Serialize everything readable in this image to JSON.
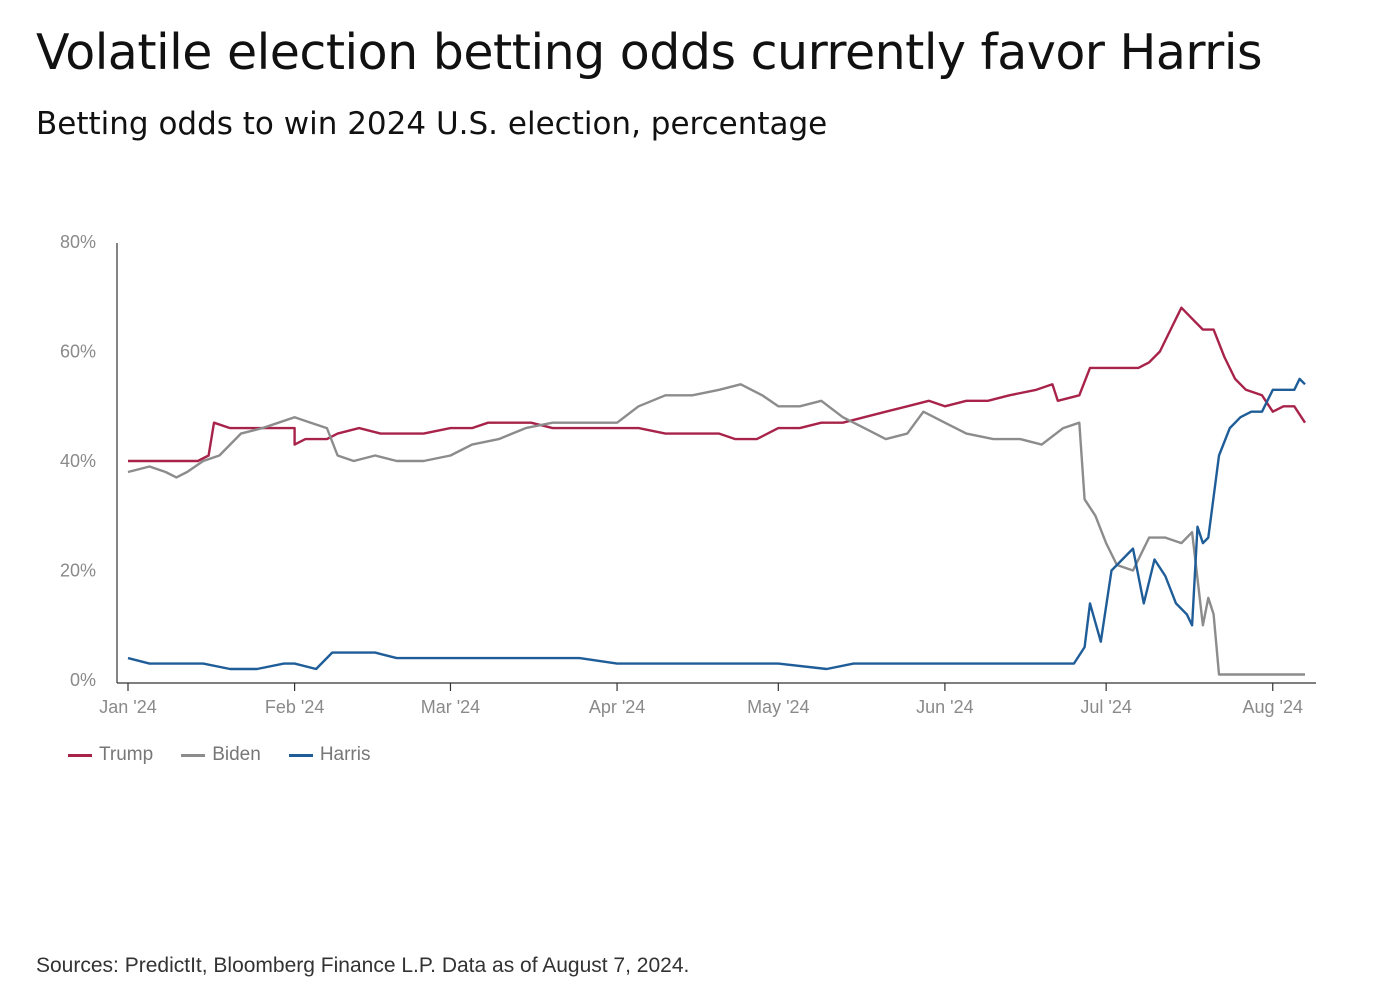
{
  "header": {
    "title": "Volatile election betting odds currently favor Harris",
    "subtitle": "Betting odds to win 2024 U.S. election, percentage"
  },
  "footer": {
    "source": "Sources: PredictIt, Bloomberg Finance L.P. Data as of August 7, 2024."
  },
  "chart_data": {
    "type": "line",
    "title": "Volatile election betting odds currently favor Harris",
    "subtitle": "Betting odds to win 2024 U.S. election, percentage",
    "xlabel": "",
    "ylabel": "",
    "x_axis": {
      "range": [
        "2024-01-01",
        "2024-08-07"
      ],
      "ticks": [
        {
          "date": "2024-01-01",
          "label": "Jan '24"
        },
        {
          "date": "2024-02-01",
          "label": "Feb '24"
        },
        {
          "date": "2024-03-01",
          "label": "Mar '24"
        },
        {
          "date": "2024-04-01",
          "label": "Apr '24"
        },
        {
          "date": "2024-05-01",
          "label": "May '24"
        },
        {
          "date": "2024-06-01",
          "label": "Jun '24"
        },
        {
          "date": "2024-07-01",
          "label": "Jul '24"
        },
        {
          "date": "2024-08-01",
          "label": "Aug '24"
        }
      ]
    },
    "y_axis": {
      "ylim": [
        0,
        80
      ],
      "ticks": [
        {
          "value": 0,
          "label": "0%"
        },
        {
          "value": 20,
          "label": "20%"
        },
        {
          "value": 40,
          "label": "40%"
        },
        {
          "value": 60,
          "label": "60%"
        },
        {
          "value": 80,
          "label": "80%"
        }
      ]
    },
    "grid": false,
    "legend_position": "bottom-left",
    "series": [
      {
        "name": "Trump",
        "color": "#a8234a",
        "points": [
          [
            "2024-01-01",
            40
          ],
          [
            "2024-01-05",
            40
          ],
          [
            "2024-01-10",
            40
          ],
          [
            "2024-01-14",
            40
          ],
          [
            "2024-01-16",
            41
          ],
          [
            "2024-01-17",
            47
          ],
          [
            "2024-01-20",
            46
          ],
          [
            "2024-01-25",
            46
          ],
          [
            "2024-01-29",
            46
          ],
          [
            "2024-02-01",
            46
          ],
          [
            "2024-02-01",
            43
          ],
          [
            "2024-02-03",
            44
          ],
          [
            "2024-02-07",
            44
          ],
          [
            "2024-02-09",
            45
          ],
          [
            "2024-02-13",
            46
          ],
          [
            "2024-02-17",
            45
          ],
          [
            "2024-02-21",
            45
          ],
          [
            "2024-02-25",
            45
          ],
          [
            "2024-03-01",
            46
          ],
          [
            "2024-03-05",
            46
          ],
          [
            "2024-03-08",
            47
          ],
          [
            "2024-03-12",
            47
          ],
          [
            "2024-03-16",
            47
          ],
          [
            "2024-03-20",
            46
          ],
          [
            "2024-03-25",
            46
          ],
          [
            "2024-03-29",
            46
          ],
          [
            "2024-04-01",
            46
          ],
          [
            "2024-04-05",
            46
          ],
          [
            "2024-04-10",
            45
          ],
          [
            "2024-04-15",
            45
          ],
          [
            "2024-04-20",
            45
          ],
          [
            "2024-04-23",
            44
          ],
          [
            "2024-04-27",
            44
          ],
          [
            "2024-05-01",
            46
          ],
          [
            "2024-05-05",
            46
          ],
          [
            "2024-05-09",
            47
          ],
          [
            "2024-05-13",
            47
          ],
          [
            "2024-05-17",
            48
          ],
          [
            "2024-05-21",
            49
          ],
          [
            "2024-05-25",
            50
          ],
          [
            "2024-05-29",
            51
          ],
          [
            "2024-06-01",
            50
          ],
          [
            "2024-06-05",
            51
          ],
          [
            "2024-06-09",
            51
          ],
          [
            "2024-06-13",
            52
          ],
          [
            "2024-06-18",
            53
          ],
          [
            "2024-06-21",
            54
          ],
          [
            "2024-06-22",
            51
          ],
          [
            "2024-06-26",
            52
          ],
          [
            "2024-06-28",
            57
          ],
          [
            "2024-07-01",
            57
          ],
          [
            "2024-07-03",
            57
          ],
          [
            "2024-07-07",
            57
          ],
          [
            "2024-07-09",
            58
          ],
          [
            "2024-07-11",
            60
          ],
          [
            "2024-07-13",
            64
          ],
          [
            "2024-07-15",
            68
          ],
          [
            "2024-07-17",
            66
          ],
          [
            "2024-07-19",
            64
          ],
          [
            "2024-07-21",
            64
          ],
          [
            "2024-07-23",
            59
          ],
          [
            "2024-07-25",
            55
          ],
          [
            "2024-07-27",
            53
          ],
          [
            "2024-07-30",
            52
          ],
          [
            "2024-08-01",
            49
          ],
          [
            "2024-08-03",
            50
          ],
          [
            "2024-08-05",
            50
          ],
          [
            "2024-08-07",
            47
          ]
        ]
      },
      {
        "name": "Biden",
        "color": "#8c8c8c",
        "points": [
          [
            "2024-01-01",
            38
          ],
          [
            "2024-01-05",
            39
          ],
          [
            "2024-01-08",
            38
          ],
          [
            "2024-01-10",
            37
          ],
          [
            "2024-01-12",
            38
          ],
          [
            "2024-01-15",
            40
          ],
          [
            "2024-01-18",
            41
          ],
          [
            "2024-01-22",
            45
          ],
          [
            "2024-01-26",
            46
          ],
          [
            "2024-01-29",
            47
          ],
          [
            "2024-02-01",
            48
          ],
          [
            "2024-02-04",
            47
          ],
          [
            "2024-02-07",
            46
          ],
          [
            "2024-02-09",
            41
          ],
          [
            "2024-02-12",
            40
          ],
          [
            "2024-02-16",
            41
          ],
          [
            "2024-02-20",
            40
          ],
          [
            "2024-02-25",
            40
          ],
          [
            "2024-03-01",
            41
          ],
          [
            "2024-03-05",
            43
          ],
          [
            "2024-03-10",
            44
          ],
          [
            "2024-03-15",
            46
          ],
          [
            "2024-03-20",
            47
          ],
          [
            "2024-03-25",
            47
          ],
          [
            "2024-04-01",
            47
          ],
          [
            "2024-04-05",
            50
          ],
          [
            "2024-04-10",
            52
          ],
          [
            "2024-04-15",
            52
          ],
          [
            "2024-04-20",
            53
          ],
          [
            "2024-04-24",
            54
          ],
          [
            "2024-04-28",
            52
          ],
          [
            "2024-05-01",
            50
          ],
          [
            "2024-05-05",
            50
          ],
          [
            "2024-05-09",
            51
          ],
          [
            "2024-05-13",
            48
          ],
          [
            "2024-05-17",
            46
          ],
          [
            "2024-05-21",
            44
          ],
          [
            "2024-05-25",
            45
          ],
          [
            "2024-05-28",
            49
          ],
          [
            "2024-06-01",
            47
          ],
          [
            "2024-06-05",
            45
          ],
          [
            "2024-06-10",
            44
          ],
          [
            "2024-06-15",
            44
          ],
          [
            "2024-06-19",
            43
          ],
          [
            "2024-06-23",
            46
          ],
          [
            "2024-06-26",
            47
          ],
          [
            "2024-06-27",
            33
          ],
          [
            "2024-06-29",
            30
          ],
          [
            "2024-07-01",
            25
          ],
          [
            "2024-07-03",
            21
          ],
          [
            "2024-07-06",
            20
          ],
          [
            "2024-07-09",
            26
          ],
          [
            "2024-07-12",
            26
          ],
          [
            "2024-07-15",
            25
          ],
          [
            "2024-07-17",
            27
          ],
          [
            "2024-07-19",
            10
          ],
          [
            "2024-07-20",
            15
          ],
          [
            "2024-07-21",
            12
          ],
          [
            "2024-07-22",
            1
          ],
          [
            "2024-07-26",
            1
          ],
          [
            "2024-08-01",
            1
          ],
          [
            "2024-08-07",
            1
          ]
        ]
      },
      {
        "name": "Harris",
        "color": "#1f5d99",
        "points": [
          [
            "2024-01-01",
            4
          ],
          [
            "2024-01-05",
            3
          ],
          [
            "2024-01-10",
            3
          ],
          [
            "2024-01-15",
            3
          ],
          [
            "2024-01-20",
            2
          ],
          [
            "2024-01-25",
            2
          ],
          [
            "2024-01-30",
            3
          ],
          [
            "2024-02-01",
            3
          ],
          [
            "2024-02-05",
            2
          ],
          [
            "2024-02-08",
            5
          ],
          [
            "2024-02-12",
            5
          ],
          [
            "2024-02-16",
            5
          ],
          [
            "2024-02-20",
            4
          ],
          [
            "2024-02-25",
            4
          ],
          [
            "2024-03-01",
            4
          ],
          [
            "2024-03-05",
            4
          ],
          [
            "2024-03-10",
            4
          ],
          [
            "2024-03-15",
            4
          ],
          [
            "2024-03-20",
            4
          ],
          [
            "2024-03-25",
            4
          ],
          [
            "2024-04-01",
            3
          ],
          [
            "2024-04-10",
            3
          ],
          [
            "2024-04-20",
            3
          ],
          [
            "2024-05-01",
            3
          ],
          [
            "2024-05-10",
            2
          ],
          [
            "2024-05-15",
            3
          ],
          [
            "2024-05-20",
            3
          ],
          [
            "2024-06-01",
            3
          ],
          [
            "2024-06-10",
            3
          ],
          [
            "2024-06-20",
            3
          ],
          [
            "2024-06-25",
            3
          ],
          [
            "2024-06-27",
            6
          ],
          [
            "2024-06-28",
            14
          ],
          [
            "2024-06-30",
            7
          ],
          [
            "2024-07-02",
            20
          ],
          [
            "2024-07-04",
            22
          ],
          [
            "2024-07-06",
            24
          ],
          [
            "2024-07-08",
            14
          ],
          [
            "2024-07-10",
            22
          ],
          [
            "2024-07-12",
            19
          ],
          [
            "2024-07-14",
            14
          ],
          [
            "2024-07-16",
            12
          ],
          [
            "2024-07-17",
            10
          ],
          [
            "2024-07-18",
            28
          ],
          [
            "2024-07-19",
            25
          ],
          [
            "2024-07-20",
            26
          ],
          [
            "2024-07-22",
            41
          ],
          [
            "2024-07-24",
            46
          ],
          [
            "2024-07-26",
            48
          ],
          [
            "2024-07-28",
            49
          ],
          [
            "2024-07-30",
            49
          ],
          [
            "2024-08-01",
            53
          ],
          [
            "2024-08-03",
            53
          ],
          [
            "2024-08-05",
            53
          ],
          [
            "2024-08-06",
            55
          ],
          [
            "2024-08-07",
            54
          ]
        ]
      }
    ]
  }
}
